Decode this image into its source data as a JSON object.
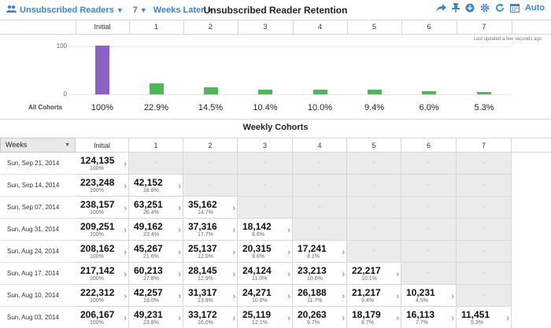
{
  "toolbar": {
    "segment_label": "Unsubscribed Readers",
    "weeks_count": "7",
    "weeks_label": "Weeks Later",
    "title": "Unsubscribed Reader Retention",
    "auto_label": "Auto"
  },
  "columns": [
    "Initial",
    "1",
    "2",
    "3",
    "4",
    "5",
    "6",
    "7"
  ],
  "last_updated": "Last updated a few seconds ago",
  "chart_data": {
    "type": "bar",
    "categories": [
      "Initial",
      "1",
      "2",
      "3",
      "4",
      "5",
      "6",
      "7"
    ],
    "values": [
      100,
      22.9,
      14.5,
      10.4,
      10.0,
      9.4,
      6.0,
      5.3
    ],
    "ylim": [
      0,
      100
    ],
    "yticks": [
      "100",
      "0"
    ],
    "row_label": "All Cohorts",
    "value_labels": [
      "100%",
      "22.9%",
      "14.5%",
      "10.4%",
      "10.0%",
      "9.4%",
      "6.0%",
      "5.3%"
    ],
    "colors": [
      "#8a63c4",
      "#4cb857",
      "#4cb857",
      "#4cb857",
      "#4cb857",
      "#4cb857",
      "#4cb857",
      "#4cb857"
    ]
  },
  "cohorts": {
    "title": "Weekly Cohorts",
    "weeks_header": "Weeks",
    "empty_mark": "-",
    "rows": [
      {
        "date": "Sun, Sep 21, 2014",
        "cells": [
          {
            "v": "124,135",
            "p": "100%"
          }
        ]
      },
      {
        "date": "Sun, Sep 14, 2014",
        "cells": [
          {
            "v": "223,248",
            "p": "100%"
          },
          {
            "v": "42,152",
            "p": "18.8%"
          }
        ]
      },
      {
        "date": "Sun, Sep 07, 2014",
        "cells": [
          {
            "v": "238,157",
            "p": "100%"
          },
          {
            "v": "63,251",
            "p": "26.4%"
          },
          {
            "v": "35,162",
            "p": "14.7%"
          }
        ]
      },
      {
        "date": "Sun, Aug 31, 2014",
        "cells": [
          {
            "v": "209,251",
            "p": "100%"
          },
          {
            "v": "49,162",
            "p": "23.4%"
          },
          {
            "v": "37,316",
            "p": "17.7%"
          },
          {
            "v": "18,142",
            "p": "8.6%"
          }
        ]
      },
      {
        "date": "Sun, Aug 24, 2014",
        "cells": [
          {
            "v": "208,162",
            "p": "100%"
          },
          {
            "v": "45,267",
            "p": "21.6%"
          },
          {
            "v": "25,137",
            "p": "12.0%"
          },
          {
            "v": "20,315",
            "p": "9.6%"
          },
          {
            "v": "17,241",
            "p": "8.1%"
          }
        ]
      },
      {
        "date": "Sun, Aug 17, 2014",
        "cells": [
          {
            "v": "217,142",
            "p": "100%"
          },
          {
            "v": "60,213",
            "p": "27.8%"
          },
          {
            "v": "28,145",
            "p": "12.9%"
          },
          {
            "v": "24,124",
            "p": "11.0%"
          },
          {
            "v": "23,213",
            "p": "10.6%"
          },
          {
            "v": "22,217",
            "p": "10.1%"
          }
        ]
      },
      {
        "date": "Sun, Aug 10, 2014",
        "cells": [
          {
            "v": "222,312",
            "p": "100%"
          },
          {
            "v": "42,257",
            "p": "19.0%"
          },
          {
            "v": "31,317",
            "p": "13.9%"
          },
          {
            "v": "24,271",
            "p": "10.8%"
          },
          {
            "v": "26,188",
            "p": "11.7%"
          },
          {
            "v": "21,217",
            "p": "9.4%"
          },
          {
            "v": "10,231",
            "p": "4.5%"
          }
        ]
      },
      {
        "date": "Sun, Aug 03, 2014",
        "cells": [
          {
            "v": "206,167",
            "p": "100%"
          },
          {
            "v": "49,231",
            "p": "23.8%"
          },
          {
            "v": "33,172",
            "p": "16.0%"
          },
          {
            "v": "25,119",
            "p": "12.1%"
          },
          {
            "v": "20,263",
            "p": "9.7%"
          },
          {
            "v": "18,179",
            "p": "8.7%"
          },
          {
            "v": "16,113",
            "p": "7.7%"
          },
          {
            "v": "11,451",
            "p": "5.3%"
          }
        ]
      }
    ]
  }
}
